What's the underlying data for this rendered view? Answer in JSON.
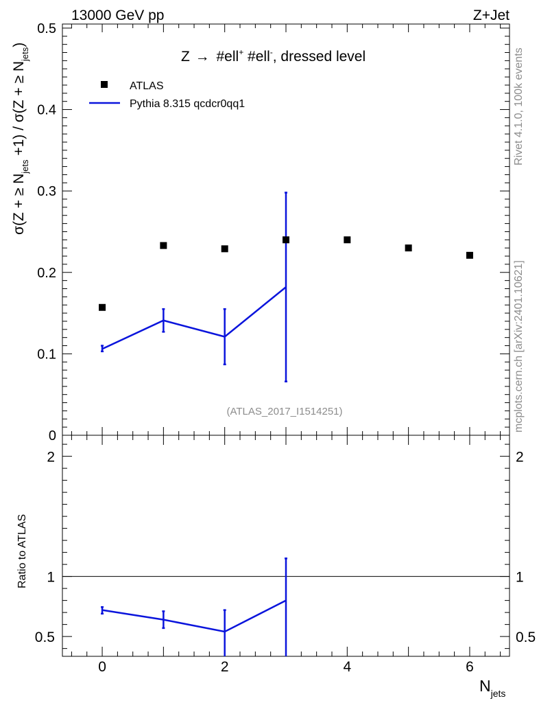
{
  "header": {
    "energy_label": "13000 GeV pp",
    "process_label": "Z+Jet",
    "rivet_label": "Rivet 4.1.0,  100k events",
    "mcplots_label": "mcplots.cern.ch [arXiv:2401.10621]",
    "analysis_label": "(ATLAS_2017_I1514251)"
  },
  "colors": {
    "mc": "#0a14dc",
    "data": "#000000",
    "watermark": "#8c8c8c"
  },
  "chart_data": [
    {
      "type": "scatter",
      "id": "main",
      "title": "Z → #ell⁺ #ell⁻, dressed level",
      "title_parts": {
        "pre": "Z ",
        "arrow": "→",
        "ell1": " #ell",
        "sup1": "+",
        "ell2": " #ell",
        "sup2": "-",
        "post": ", dressed level"
      },
      "ylabel": "σ(Z + ≥ N_jets +1) / σ(Z + ≥ N_jets)",
      "ylabel_parts": {
        "a": "σ(Z + ≥ N",
        "sub1": "jets",
        "b": " +1) / σ(Z + ≥ N",
        "sub2": "jets",
        "c": ")"
      },
      "xlim": [
        -0.65,
        6.65
      ],
      "ylim": [
        0,
        0.505
      ],
      "yticks": [
        0,
        0.1,
        0.2,
        0.3,
        0.4,
        0.5
      ],
      "ytick_labels": [
        "0",
        "0.1",
        "0.2",
        "0.3",
        "0.4",
        "0.5"
      ],
      "legend": {
        "position": "top-left",
        "entries": [
          {
            "label": "ATLAS",
            "marker": "square"
          },
          {
            "label": "Pythia 8.315 qcdcr0qq1",
            "marker": "line"
          }
        ]
      },
      "series": [
        {
          "name": "ATLAS",
          "style": "markers",
          "x": [
            0,
            1,
            2,
            3,
            4,
            5,
            6
          ],
          "y": [
            0.157,
            0.233,
            0.229,
            0.24,
            0.24,
            0.23,
            0.221
          ]
        },
        {
          "name": "Pythia 8.315 qcdcr0qq1",
          "style": "line",
          "x": [
            0,
            1,
            2,
            3
          ],
          "y": [
            0.106,
            0.141,
            0.121,
            0.182
          ],
          "yerr_low": [
            0.103,
            0.127,
            0.087,
            0.066
          ],
          "yerr_high": [
            0.11,
            0.155,
            0.155,
            0.298
          ]
        }
      ]
    },
    {
      "type": "line",
      "id": "ratio",
      "ylabel": "Ratio to ATLAS",
      "xlabel": "N_jets",
      "xlabel_parts": {
        "main": "N",
        "sub": "jets"
      },
      "xlim": [
        -0.65,
        6.65
      ],
      "ylim": [
        0.335,
        2.175
      ],
      "xticks": [
        0,
        2,
        4,
        6
      ],
      "xtick_labels": [
        "0",
        "2",
        "4",
        "6"
      ],
      "yticks": [
        0.5,
        1,
        2
      ],
      "ytick_labels": [
        "0.5",
        "1",
        "2"
      ],
      "reference_line": 1,
      "series": [
        {
          "name": "Pythia 8.315 qcdcr0qq1",
          "x": [
            0,
            1,
            2,
            3
          ],
          "y": [
            0.72,
            0.64,
            0.54,
            0.8
          ],
          "yerr_low": [
            0.69,
            0.57,
            0.335,
            0.335
          ],
          "yerr_high": [
            0.745,
            0.71,
            0.72,
            1.15
          ]
        }
      ]
    }
  ]
}
